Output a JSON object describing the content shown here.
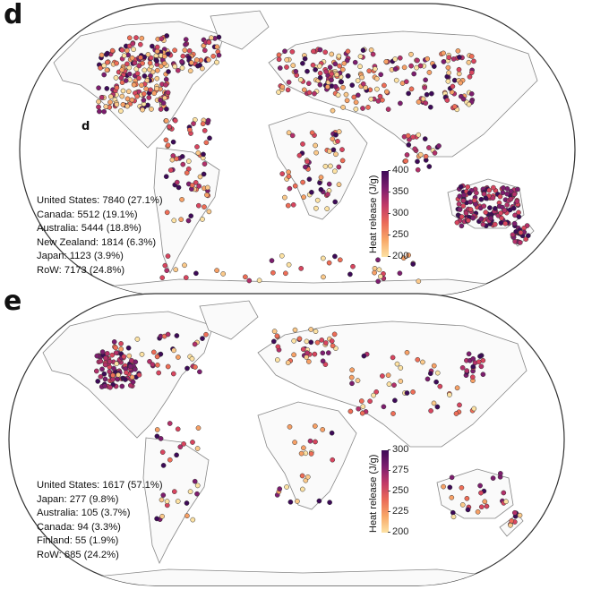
{
  "panels": {
    "d": {
      "letter": "d",
      "inner_label": "d",
      "stats": [
        "United States: 7840 (27.1%)",
        "Canada: 5512 (19.1%)",
        "Australia: 5444 (18.8%)",
        "New Zealand: 1814 (6.3%)",
        "Japan: 1123 (3.9%)",
        "RoW: 7173 (24.8%)"
      ],
      "colorbar": {
        "title": "Heat release (J/g)",
        "ticks": [
          "400",
          "350",
          "300",
          "250",
          "200"
        ],
        "min": 200,
        "max": 400
      },
      "density": "high"
    },
    "e": {
      "letter": "e",
      "stats": [
        "United States: 1617 (57.1%)",
        "Japan: 277 (9.8%)",
        "Australia: 105 (3.7%)",
        "Canada: 94 (3.3%)",
        "Finland: 55 (1.9%)",
        "RoW: 685 (24.2%)"
      ],
      "colorbar": {
        "title": "Heat release (J/g)",
        "ticks": [
          "300",
          "275",
          "250",
          "225",
          "200"
        ],
        "min": 200,
        "max": 300
      },
      "density": "low"
    }
  },
  "colors": {
    "land_outline": "#777777",
    "dark": "#3d0a57",
    "mid": "#c23a68",
    "light": "#fde2a3"
  }
}
